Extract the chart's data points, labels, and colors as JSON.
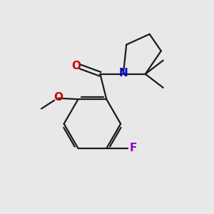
{
  "background_color": "#e8e8e8",
  "bond_color": "#1a1a1a",
  "bond_width": 1.6,
  "atom_colors": {
    "O_carbonyl": "#cc0000",
    "O_methoxy": "#cc0000",
    "N": "#0000cc",
    "F": "#9900cc"
  },
  "font_size_atoms": 11,
  "xlim": [
    0,
    10
  ],
  "ylim": [
    0,
    10
  ]
}
